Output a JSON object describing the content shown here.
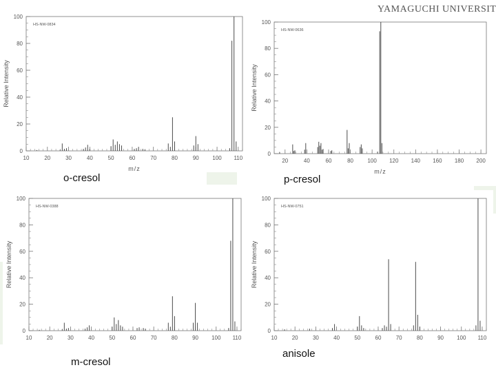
{
  "header": {
    "brand": "YAMAGUCHI UNIVERSITY"
  },
  "chart_data": [
    {
      "type": "bar",
      "compound": "o-cresol",
      "spectrum_id": "HS-NW-0834",
      "xlabel": "m/z",
      "ylabel": "Relative Intensity",
      "xlim": [
        10,
        112
      ],
      "ylim": [
        0,
        100
      ],
      "xticks": [
        10,
        20,
        30,
        40,
        50,
        60,
        70,
        80,
        90,
        100,
        110
      ],
      "yticks": [
        0,
        20,
        40,
        60,
        80,
        100
      ],
      "peaks": [
        {
          "mz": 15,
          "i": 0.6
        },
        {
          "mz": 26,
          "i": 0.8
        },
        {
          "mz": 27,
          "i": 5.5
        },
        {
          "mz": 28,
          "i": 1.5
        },
        {
          "mz": 29,
          "i": 2.0
        },
        {
          "mz": 37,
          "i": 1.5
        },
        {
          "mz": 38,
          "i": 2.5
        },
        {
          "mz": 39,
          "i": 4.5
        },
        {
          "mz": 40,
          "i": 1.5
        },
        {
          "mz": 50,
          "i": 3.5
        },
        {
          "mz": 51,
          "i": 8.5
        },
        {
          "mz": 52,
          "i": 4.5
        },
        {
          "mz": 53,
          "i": 7.0
        },
        {
          "mz": 54,
          "i": 5.0
        },
        {
          "mz": 55,
          "i": 4.0
        },
        {
          "mz": 61,
          "i": 1.5
        },
        {
          "mz": 62,
          "i": 2.0
        },
        {
          "mz": 63,
          "i": 3.0
        },
        {
          "mz": 65,
          "i": 1.5
        },
        {
          "mz": 66,
          "i": 1.0
        },
        {
          "mz": 77,
          "i": 5.5
        },
        {
          "mz": 78,
          "i": 3.0
        },
        {
          "mz": 79,
          "i": 25.0
        },
        {
          "mz": 80,
          "i": 7.0
        },
        {
          "mz": 89,
          "i": 4.0
        },
        {
          "mz": 90,
          "i": 11.0
        },
        {
          "mz": 91,
          "i": 5.0
        },
        {
          "mz": 106,
          "i": 2.0
        },
        {
          "mz": 107,
          "i": 82.0
        },
        {
          "mz": 108,
          "i": 100.0
        },
        {
          "mz": 109,
          "i": 7.0
        }
      ]
    },
    {
      "type": "bar",
      "compound": "p-cresol",
      "spectrum_id": "HS-NW-0636",
      "xlabel": "m/z",
      "ylabel": "Relative Intensity",
      "xlim": [
        10,
        205
      ],
      "ylim": [
        0,
        100
      ],
      "xticks": [
        20,
        40,
        60,
        80,
        100,
        120,
        140,
        160,
        180,
        200
      ],
      "yticks": [
        0,
        20,
        40,
        60,
        80,
        100
      ],
      "peaks": [
        {
          "mz": 15,
          "i": 1.0
        },
        {
          "mz": 27,
          "i": 7.0
        },
        {
          "mz": 28,
          "i": 2.0
        },
        {
          "mz": 29,
          "i": 2.5
        },
        {
          "mz": 38,
          "i": 3.0
        },
        {
          "mz": 39,
          "i": 8.0
        },
        {
          "mz": 50,
          "i": 5.0
        },
        {
          "mz": 51,
          "i": 9.0
        },
        {
          "mz": 52,
          "i": 6.0
        },
        {
          "mz": 53,
          "i": 8.0
        },
        {
          "mz": 54,
          "i": 3.0
        },
        {
          "mz": 55,
          "i": 3.5
        },
        {
          "mz": 62,
          "i": 2.0
        },
        {
          "mz": 63,
          "i": 2.5
        },
        {
          "mz": 77,
          "i": 18.0
        },
        {
          "mz": 78,
          "i": 4.0
        },
        {
          "mz": 79,
          "i": 8.0
        },
        {
          "mz": 89,
          "i": 5.0
        },
        {
          "mz": 90,
          "i": 7.0
        },
        {
          "mz": 91,
          "i": 4.0
        },
        {
          "mz": 105,
          "i": 1.5
        },
        {
          "mz": 107,
          "i": 93.0
        },
        {
          "mz": 108,
          "i": 100.0
        },
        {
          "mz": 109,
          "i": 8.0
        }
      ]
    },
    {
      "type": "bar",
      "compound": "m-cresol",
      "spectrum_id": "HS-NW-0388",
      "xlabel": "m/z",
      "ylabel": "Relative Intensity",
      "xlim": [
        10,
        112
      ],
      "ylim": [
        0,
        100
      ],
      "xticks": [
        10,
        20,
        30,
        40,
        50,
        60,
        70,
        80,
        90,
        100,
        110
      ],
      "yticks": [
        0,
        20,
        40,
        60,
        80,
        100
      ],
      "peaks": [
        {
          "mz": 15,
          "i": 0.6
        },
        {
          "mz": 26,
          "i": 1.0
        },
        {
          "mz": 27,
          "i": 6.0
        },
        {
          "mz": 28,
          "i": 1.5
        },
        {
          "mz": 29,
          "i": 2.0
        },
        {
          "mz": 37,
          "i": 1.5
        },
        {
          "mz": 38,
          "i": 2.5
        },
        {
          "mz": 39,
          "i": 4.0
        },
        {
          "mz": 50,
          "i": 3.0
        },
        {
          "mz": 51,
          "i": 10.0
        },
        {
          "mz": 52,
          "i": 5.0
        },
        {
          "mz": 53,
          "i": 8.0
        },
        {
          "mz": 54,
          "i": 4.0
        },
        {
          "mz": 55,
          "i": 3.0
        },
        {
          "mz": 62,
          "i": 2.0
        },
        {
          "mz": 63,
          "i": 2.5
        },
        {
          "mz": 65,
          "i": 2.0
        },
        {
          "mz": 66,
          "i": 1.5
        },
        {
          "mz": 77,
          "i": 6.0
        },
        {
          "mz": 78,
          "i": 3.0
        },
        {
          "mz": 79,
          "i": 26.0
        },
        {
          "mz": 80,
          "i": 11.0
        },
        {
          "mz": 89,
          "i": 6.0
        },
        {
          "mz": 90,
          "i": 21.0
        },
        {
          "mz": 91,
          "i": 6.0
        },
        {
          "mz": 106,
          "i": 2.0
        },
        {
          "mz": 107,
          "i": 68.0
        },
        {
          "mz": 108,
          "i": 100.0
        },
        {
          "mz": 109,
          "i": 7.0
        }
      ]
    },
    {
      "type": "bar",
      "compound": "anisole",
      "spectrum_id": "HS-NW-0751",
      "xlabel": "m/z",
      "ylabel": "Relative Intensity",
      "xlim": [
        10,
        112
      ],
      "ylim": [
        0,
        100
      ],
      "xticks": [
        10,
        20,
        30,
        40,
        50,
        60,
        70,
        80,
        90,
        100,
        110
      ],
      "yticks": [
        0,
        20,
        40,
        60,
        80,
        100
      ],
      "peaks": [
        {
          "mz": 15,
          "i": 1.0
        },
        {
          "mz": 27,
          "i": 1.5
        },
        {
          "mz": 38,
          "i": 2.0
        },
        {
          "mz": 39,
          "i": 5.0
        },
        {
          "mz": 50,
          "i": 3.0
        },
        {
          "mz": 51,
          "i": 11.0
        },
        {
          "mz": 52,
          "i": 4.0
        },
        {
          "mz": 53,
          "i": 2.0
        },
        {
          "mz": 62,
          "i": 2.0
        },
        {
          "mz": 63,
          "i": 4.0
        },
        {
          "mz": 64,
          "i": 3.0
        },
        {
          "mz": 65,
          "i": 54.0
        },
        {
          "mz": 66,
          "i": 5.0
        },
        {
          "mz": 77,
          "i": 4.0
        },
        {
          "mz": 78,
          "i": 52.0
        },
        {
          "mz": 79,
          "i": 12.0
        },
        {
          "mz": 80,
          "i": 3.0
        },
        {
          "mz": 107,
          "i": 4.0
        },
        {
          "mz": 108,
          "i": 100.0
        },
        {
          "mz": 109,
          "i": 7.5
        }
      ]
    }
  ],
  "colors": {
    "axis": "#777777",
    "bar": "#4a4a4a",
    "text": "#555555",
    "accent_bg": "#eef4ea"
  }
}
